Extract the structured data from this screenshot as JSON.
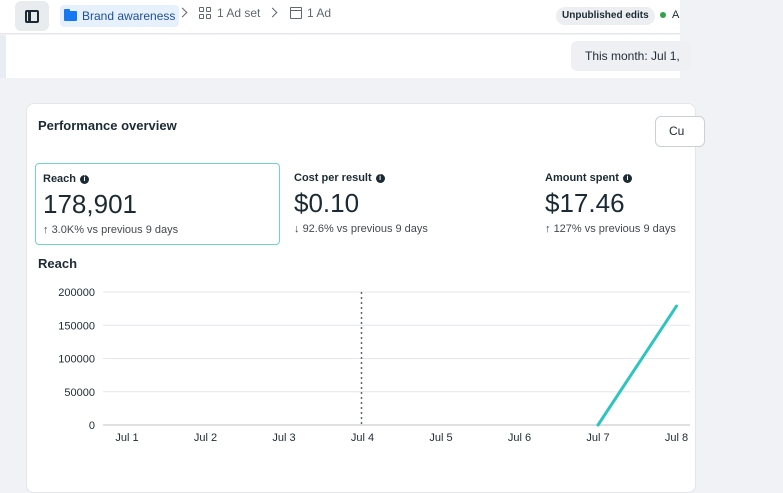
{
  "topbar": {
    "campaign": "Brand awareness",
    "adset": "1 Ad set",
    "ad": "1 Ad",
    "unpublished": "Unpublished edits",
    "status_partial": "A"
  },
  "date_range": "This month: Jul 1,",
  "card": {
    "title": "Performance overview",
    "button_partial": "Cu"
  },
  "metrics": [
    {
      "label": "Reach",
      "value": "178,901",
      "arrow": "↑",
      "change": "3.0K% vs previous 9 days",
      "selected": true
    },
    {
      "label": "Cost per result",
      "value": "$0.10",
      "arrow": "↓",
      "change": "92.6% vs previous 9 days",
      "selected": false
    },
    {
      "label": "Amount spent",
      "value": "$17.46",
      "arrow": "↑",
      "change": "127% vs previous 9 days",
      "selected": false
    }
  ],
  "chart_title": "Reach",
  "chart_data": {
    "type": "line",
    "categories": [
      "Jul 1",
      "Jul 2",
      "Jul 3",
      "Jul 4",
      "Jul 5",
      "Jul 6",
      "Jul 7",
      "Jul 8"
    ],
    "y_ticks": [
      "200000",
      "150000",
      "100000",
      "50000",
      "0"
    ],
    "ylim": [
      0,
      200000
    ],
    "series": [
      {
        "values": [
          null,
          null,
          null,
          null,
          null,
          null,
          0,
          178901
        ],
        "color": "#2ec4c0"
      }
    ],
    "marker_category": "Jul 4",
    "grid": true
  }
}
